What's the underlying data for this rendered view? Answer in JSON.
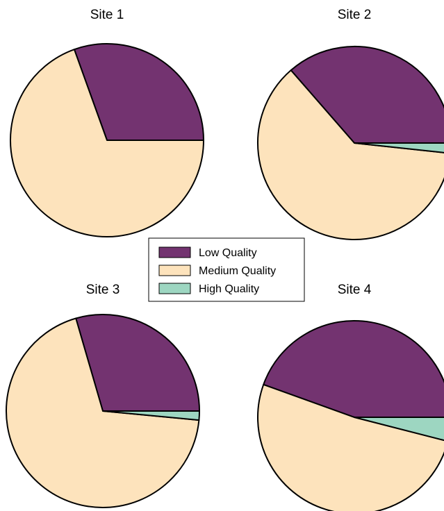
{
  "chart_data": [
    {
      "type": "pie",
      "title": "Site 1",
      "categories": [
        "Low Quality",
        "Medium Quality",
        "High Quality"
      ],
      "values": [
        30.5,
        69.5,
        0
      ]
    },
    {
      "type": "pie",
      "title": "Site 2",
      "categories": [
        "Low Quality",
        "Medium Quality",
        "High Quality"
      ],
      "values": [
        36.4,
        61.9,
        1.7
      ]
    },
    {
      "type": "pie",
      "title": "Site 3",
      "categories": [
        "Low Quality",
        "Medium Quality",
        "High Quality"
      ],
      "values": [
        29.5,
        69.0,
        1.5
      ]
    },
    {
      "type": "pie",
      "title": "Site 4",
      "categories": [
        "Low Quality",
        "Medium Quality",
        "High Quality"
      ],
      "values": [
        44.5,
        51.5,
        4.0
      ]
    }
  ],
  "legend": {
    "placement": "center",
    "entries": [
      {
        "label": "Low Quality",
        "color": "#733370"
      },
      {
        "label": "Medium Quality",
        "color": "#fde3bc"
      },
      {
        "label": "High Quality",
        "color": "#9dd6c1"
      }
    ]
  }
}
